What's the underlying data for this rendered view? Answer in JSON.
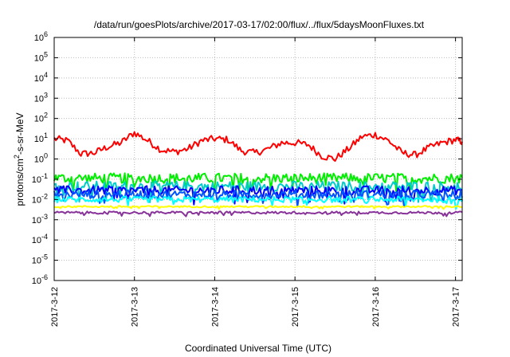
{
  "chart_data": {
    "type": "line",
    "title": "/data/run/goesPlots/archive/2017-03-17/02:00/flux/../flux/5daysMoonFluxes.txt",
    "xlabel": "Coordinated Universal Time (UTC)",
    "ylabel": "protons/cm2-s-sr-MeV",
    "y_scale": "log",
    "ylim_exp": [
      -6,
      6
    ],
    "y_ticks": [
      {
        "base": "10",
        "exp": "6"
      },
      {
        "base": "10",
        "exp": "5"
      },
      {
        "base": "10",
        "exp": "4"
      },
      {
        "base": "10",
        "exp": "3"
      },
      {
        "base": "10",
        "exp": "2"
      },
      {
        "base": "10",
        "exp": "1"
      },
      {
        "base": "10",
        "exp": "0"
      },
      {
        "base": "10",
        "exp": "-1"
      },
      {
        "base": "10",
        "exp": "-2"
      },
      {
        "base": "10",
        "exp": "-3"
      },
      {
        "base": "10",
        "exp": "-4"
      },
      {
        "base": "10",
        "exp": "-5"
      },
      {
        "base": "10",
        "exp": "-6"
      }
    ],
    "x_range_days": "2017-03-12 to 2017-03-17 02:00",
    "x_ticks": [
      "2017-3-12",
      "2017-3-13",
      "2017-3-14",
      "2017-3-15",
      "2017-3-16",
      "2017-3-17"
    ],
    "grid": true,
    "series": [
      {
        "color": "#ff0000",
        "y_log_points": [
          [
            "2017-3-12 00:00",
            1.0
          ],
          [
            "2017-3-12 04:00",
            0.9
          ],
          [
            "2017-3-12 08:00",
            0.25
          ],
          [
            "2017-3-12 12:00",
            0.3
          ],
          [
            "2017-3-12 16:00",
            0.6
          ],
          [
            "2017-3-12 20:00",
            0.8
          ],
          [
            "2017-3-13 00:00",
            1.3
          ],
          [
            "2017-3-13 04:00",
            0.9
          ],
          [
            "2017-3-13 08:00",
            0.45
          ],
          [
            "2017-3-13 12:00",
            0.35
          ],
          [
            "2017-3-13 16:00",
            0.5
          ],
          [
            "2017-3-13 20:00",
            0.9
          ],
          [
            "2017-3-14 00:00",
            1.0
          ],
          [
            "2017-3-14 04:00",
            0.95
          ],
          [
            "2017-3-14 08:00",
            0.4
          ],
          [
            "2017-3-14 12:00",
            0.3
          ],
          [
            "2017-3-14 16:00",
            0.5
          ],
          [
            "2017-3-14 20:00",
            0.8
          ],
          [
            "2017-3-15 00:00",
            0.8
          ],
          [
            "2017-3-15 04:00",
            0.7
          ],
          [
            "2017-3-15 08:00",
            0.15
          ],
          [
            "2017-3-15 12:00",
            0.0
          ],
          [
            "2017-3-15 16:00",
            0.5
          ],
          [
            "2017-3-15 20:00",
            1.1
          ],
          [
            "2017-3-16 00:00",
            1.2
          ],
          [
            "2017-3-16 04:00",
            0.9
          ],
          [
            "2017-3-16 08:00",
            0.3
          ],
          [
            "2017-3-16 12:00",
            0.2
          ],
          [
            "2017-3-16 16:00",
            0.55
          ],
          [
            "2017-3-16 20:00",
            0.8
          ],
          [
            "2017-3-17 00:00",
            0.95
          ],
          [
            "2017-3-17 02:00",
            0.85
          ]
        ]
      },
      {
        "color": "#00ee00",
        "y_log_mean": -0.95,
        "noise": 0.25
      },
      {
        "color": "#00cccc",
        "y_log_mean": -1.35,
        "noise": 0.25
      },
      {
        "color": "#0000ff",
        "y_log_mean": -1.55,
        "noise": 0.22
      },
      {
        "color": "#0055ff",
        "y_log_mean": -1.75,
        "noise": 0.2
      },
      {
        "color": "#00ffff",
        "y_log_mean": -2.0,
        "noise": 0.15
      },
      {
        "color": "#ffff00",
        "y_log_mean": -2.35,
        "noise": 0.04
      },
      {
        "color": "#883399",
        "y_log_mean": -2.65,
        "noise": 0.06
      }
    ]
  }
}
